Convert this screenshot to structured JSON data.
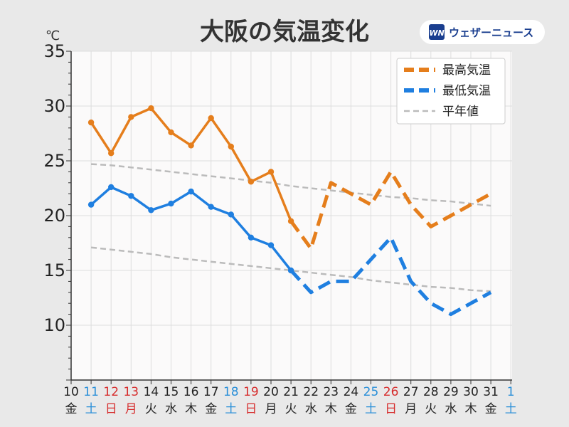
{
  "chart_data": {
    "type": "line",
    "title": "大阪の気温変化",
    "unit": "℃",
    "ylim": [
      5,
      35
    ],
    "yticks": [
      10,
      15,
      20,
      25,
      30,
      35
    ],
    "grid": true,
    "legend_position": "top-right",
    "categories": [
      {
        "day": "10",
        "weekday": "金",
        "kind": "weekday"
      },
      {
        "day": "11",
        "weekday": "土",
        "kind": "saturday"
      },
      {
        "day": "12",
        "weekday": "日",
        "kind": "holiday"
      },
      {
        "day": "13",
        "weekday": "月",
        "kind": "holiday"
      },
      {
        "day": "14",
        "weekday": "火",
        "kind": "weekday"
      },
      {
        "day": "15",
        "weekday": "水",
        "kind": "weekday"
      },
      {
        "day": "16",
        "weekday": "木",
        "kind": "weekday"
      },
      {
        "day": "17",
        "weekday": "金",
        "kind": "weekday"
      },
      {
        "day": "18",
        "weekday": "土",
        "kind": "saturday"
      },
      {
        "day": "19",
        "weekday": "日",
        "kind": "holiday"
      },
      {
        "day": "20",
        "weekday": "月",
        "kind": "weekday"
      },
      {
        "day": "21",
        "weekday": "火",
        "kind": "weekday"
      },
      {
        "day": "22",
        "weekday": "水",
        "kind": "weekday"
      },
      {
        "day": "23",
        "weekday": "木",
        "kind": "weekday"
      },
      {
        "day": "24",
        "weekday": "金",
        "kind": "weekday"
      },
      {
        "day": "25",
        "weekday": "土",
        "kind": "saturday"
      },
      {
        "day": "26",
        "weekday": "日",
        "kind": "holiday"
      },
      {
        "day": "27",
        "weekday": "月",
        "kind": "weekday"
      },
      {
        "day": "28",
        "weekday": "火",
        "kind": "weekday"
      },
      {
        "day": "29",
        "weekday": "水",
        "kind": "weekday"
      },
      {
        "day": "30",
        "weekday": "木",
        "kind": "weekday"
      },
      {
        "day": "31",
        "weekday": "金",
        "kind": "weekday"
      },
      {
        "day": "1",
        "weekday": "土",
        "kind": "saturday"
      }
    ],
    "series": [
      {
        "name": "最高気温",
        "color": "#e57e1c",
        "values": [
          null,
          28.5,
          25.7,
          29.0,
          29.8,
          27.6,
          26.4,
          28.9,
          26.3,
          23.1,
          24.0,
          19.5,
          17.0,
          23.0,
          22.0,
          21.0,
          24.0,
          21.0,
          19.0,
          20.0,
          21.0,
          22.0,
          null
        ],
        "observed_until_index": 11
      },
      {
        "name": "最低気温",
        "color": "#1f7fe0",
        "values": [
          null,
          21.0,
          22.6,
          21.8,
          20.5,
          21.1,
          22.2,
          20.8,
          20.1,
          18.0,
          17.3,
          15.0,
          13.0,
          14.0,
          14.0,
          16.0,
          18.0,
          14.0,
          12.0,
          11.0,
          12.0,
          13.0,
          null
        ],
        "observed_until_index": 11
      },
      {
        "name": "平年値",
        "color": "#bbbbbb",
        "values_high": [
          null,
          24.7,
          24.6,
          24.4,
          24.2,
          24.0,
          23.8,
          23.6,
          23.4,
          23.2,
          23.0,
          22.7,
          22.5,
          22.3,
          22.1,
          21.9,
          21.7,
          21.6,
          21.4,
          21.3,
          21.1,
          20.9,
          null
        ],
        "values_low": [
          null,
          17.1,
          16.9,
          16.7,
          16.5,
          16.2,
          16.0,
          15.8,
          15.6,
          15.4,
          15.2,
          15.0,
          14.8,
          14.6,
          14.4,
          14.1,
          13.9,
          13.7,
          13.5,
          13.4,
          13.2,
          13.1,
          null
        ]
      }
    ]
  },
  "logo": {
    "mark": "WN",
    "text": "ウェザーニュース"
  },
  "colors": {
    "weekday_label": "#222222",
    "saturday_label": "#2a8fd8",
    "holiday_label": "#d62d2d"
  }
}
